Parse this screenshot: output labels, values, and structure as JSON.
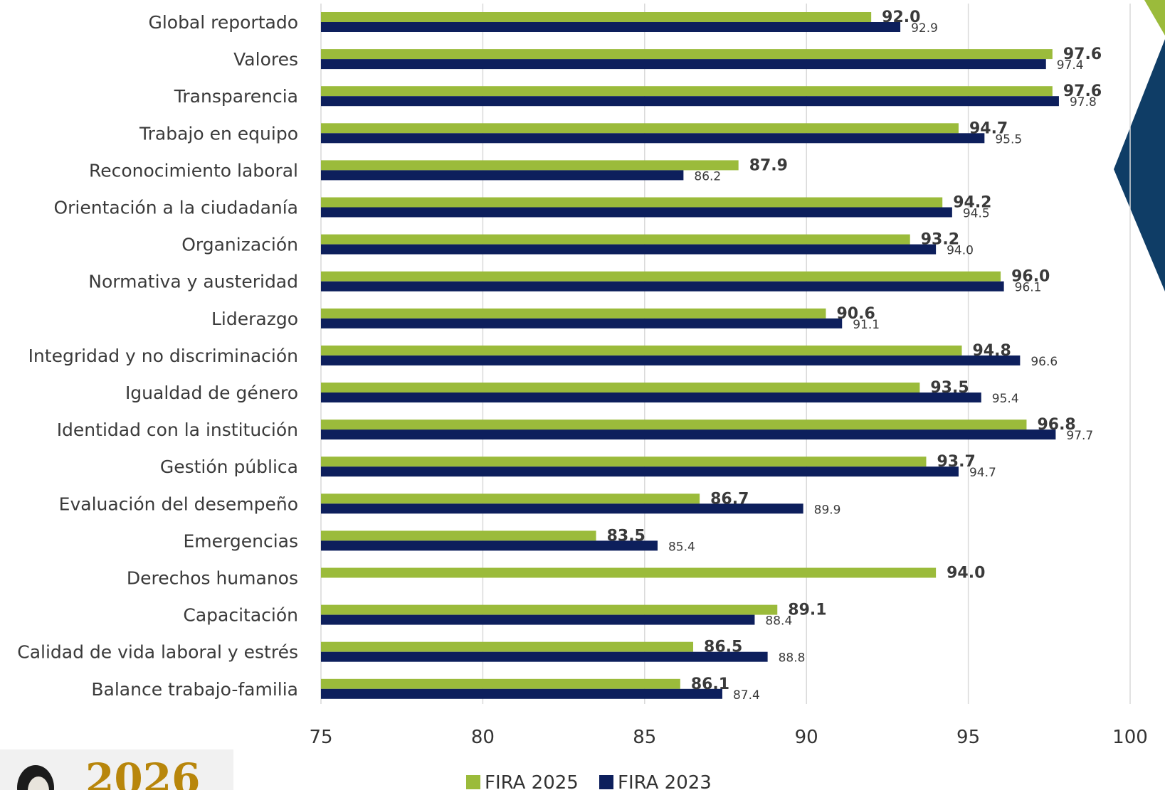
{
  "chart_data": {
    "type": "bar",
    "orientation": "horizontal",
    "title": "",
    "xlabel": "",
    "ylabel": "",
    "xlim": [
      75,
      100
    ],
    "ticks": [
      "75",
      "80",
      "85",
      "90",
      "95",
      "100"
    ],
    "grid": true,
    "legend_placement": "bottom",
    "categories": [
      "Global reportado",
      "Valores",
      "Transparencia",
      "Trabajo en equipo",
      "Reconocimiento laboral",
      "Orientación a la ciudadanía",
      "Organización",
      "Normativa y austeridad",
      "Liderazgo",
      "Integridad y no discriminación",
      "Igualdad de género",
      "Identidad con la institución",
      "Gestión pública",
      "Evaluación del desempeño",
      "Emergencias",
      "Derechos humanos",
      "Capacitación",
      "Calidad de vida laboral y estrés",
      "Balance trabajo-familia"
    ],
    "series": [
      {
        "name": "FIRA 2025",
        "color": "#9bbb3b",
        "values": [
          92.0,
          97.6,
          97.6,
          94.7,
          87.9,
          94.2,
          93.2,
          96.0,
          90.6,
          94.8,
          93.5,
          96.8,
          93.7,
          86.7,
          83.5,
          94.0,
          89.1,
          86.5,
          86.1
        ],
        "labels": [
          "92.0",
          "97.6",
          "97.6",
          "94.7",
          "87.9",
          "94.2",
          "93.2",
          "96.0",
          "90.6",
          "94.8",
          "93.5",
          "96.8",
          "93.7",
          "86.7",
          "83.5",
          "94.0",
          "89.1",
          "86.5",
          "86.1"
        ]
      },
      {
        "name": "FIRA 2023",
        "color": "#0d1f5c",
        "values": [
          92.9,
          97.4,
          97.8,
          95.5,
          86.2,
          94.5,
          94.0,
          96.1,
          91.1,
          96.6,
          95.4,
          97.7,
          94.7,
          89.9,
          85.4,
          null,
          88.4,
          88.8,
          87.4
        ],
        "labels": [
          "92.9",
          "97.4",
          "97.8",
          "95.5",
          "86.2",
          "94.5",
          "94.0",
          "96.1",
          "91.1",
          "96.6",
          "95.4",
          "97.7",
          "94.7",
          "89.9",
          "85.4",
          "",
          "88.4",
          "88.8",
          "87.4"
        ]
      }
    ]
  },
  "decor": {
    "logo_text": "2026",
    "accent_green": "#9bbb3b",
    "accent_navy": "#0f3d66"
  }
}
